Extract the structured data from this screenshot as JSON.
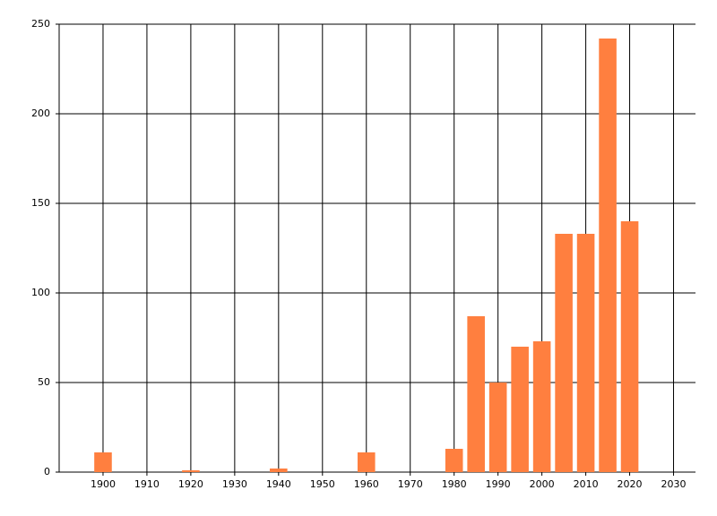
{
  "chart_data": {
    "type": "bar",
    "x": [
      1900,
      1920,
      1940,
      1960,
      1980,
      1985,
      1990,
      1995,
      2000,
      2005,
      2010,
      2015,
      2020
    ],
    "values": [
      11,
      1,
      2,
      11,
      13,
      87,
      50,
      70,
      73,
      133,
      133,
      242,
      140
    ],
    "color": "#ff7f3f",
    "xlim": [
      1890,
      2035
    ],
    "xticks": [
      1900,
      1910,
      1920,
      1930,
      1940,
      1950,
      1960,
      1970,
      1980,
      1990,
      2000,
      2010,
      2020,
      2030
    ],
    "ylim": [
      0,
      250
    ],
    "yticks": [
      0,
      50,
      100,
      150,
      200,
      250
    ],
    "grid": true
  }
}
